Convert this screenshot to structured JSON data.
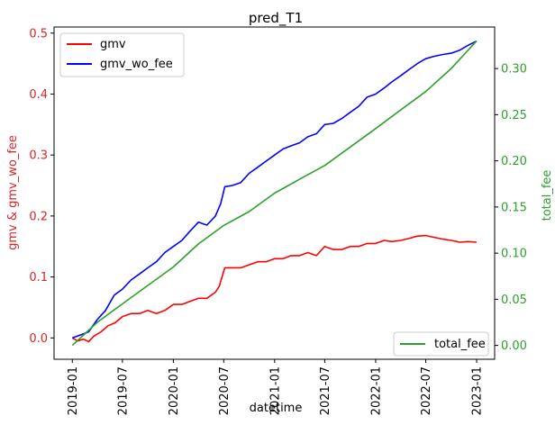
{
  "chart_data": {
    "type": "line",
    "title": "pred_T1",
    "xlabel": "datetime",
    "ylabel_left": "gmv & gmv_wo_fee",
    "ylabel_right": "total_fee",
    "x_ticks": [
      "2019-01",
      "2019-07",
      "2020-01",
      "2020-07",
      "2021-01",
      "2021-07",
      "2022-01",
      "2022-07",
      "2023-01"
    ],
    "y_left_ticks": [
      "0.0",
      "0.1",
      "0.2",
      "0.3",
      "0.4",
      "0.5"
    ],
    "y_right_ticks": [
      "0.00",
      "0.05",
      "0.10",
      "0.15",
      "0.20",
      "0.25",
      "0.30"
    ],
    "y_left_lim": [
      -0.035,
      0.51
    ],
    "y_right_lim": [
      -0.015,
      0.345
    ],
    "x_range": [
      "2018-10-27",
      "2023-03-07"
    ],
    "grid": false,
    "legend_left_position": "top-left",
    "legend_right_position": "bottom-right",
    "left_axis_color": "#d62728",
    "right_axis_color": "#2ca02c",
    "series": [
      {
        "name": "gmv",
        "axis": "left",
        "color": "#ff0000",
        "points": [
          [
            "2019-01-01",
            0.0
          ],
          [
            "2019-01-20",
            -0.005
          ],
          [
            "2019-02-10",
            -0.002
          ],
          [
            "2019-03-01",
            -0.006
          ],
          [
            "2019-03-20",
            0.003
          ],
          [
            "2019-04-15",
            0.01
          ],
          [
            "2019-05-10",
            0.02
          ],
          [
            "2019-06-05",
            0.025
          ],
          [
            "2019-07-01",
            0.035
          ],
          [
            "2019-08-01",
            0.04
          ],
          [
            "2019-09-01",
            0.04
          ],
          [
            "2019-10-01",
            0.045
          ],
          [
            "2019-11-01",
            0.04
          ],
          [
            "2019-12-01",
            0.045
          ],
          [
            "2020-01-01",
            0.055
          ],
          [
            "2020-02-01",
            0.055
          ],
          [
            "2020-03-01",
            0.06
          ],
          [
            "2020-04-01",
            0.065
          ],
          [
            "2020-05-01",
            0.065
          ],
          [
            "2020-06-01",
            0.075
          ],
          [
            "2020-06-15",
            0.085
          ],
          [
            "2020-06-25",
            0.1
          ],
          [
            "2020-07-05",
            0.115
          ],
          [
            "2020-08-01",
            0.115
          ],
          [
            "2020-09-01",
            0.115
          ],
          [
            "2020-10-01",
            0.12
          ],
          [
            "2020-11-01",
            0.125
          ],
          [
            "2020-12-01",
            0.125
          ],
          [
            "2021-01-01",
            0.13
          ],
          [
            "2021-02-01",
            0.13
          ],
          [
            "2021-03-01",
            0.135
          ],
          [
            "2021-04-01",
            0.135
          ],
          [
            "2021-05-01",
            0.14
          ],
          [
            "2021-06-01",
            0.135
          ],
          [
            "2021-07-01",
            0.15
          ],
          [
            "2021-08-01",
            0.145
          ],
          [
            "2021-09-01",
            0.145
          ],
          [
            "2021-10-01",
            0.15
          ],
          [
            "2021-11-01",
            0.15
          ],
          [
            "2021-12-01",
            0.155
          ],
          [
            "2022-01-01",
            0.155
          ],
          [
            "2022-02-01",
            0.16
          ],
          [
            "2022-03-01",
            0.158
          ],
          [
            "2022-04-01",
            0.16
          ],
          [
            "2022-05-01",
            0.163
          ],
          [
            "2022-06-01",
            0.167
          ],
          [
            "2022-07-01",
            0.168
          ],
          [
            "2022-08-01",
            0.165
          ],
          [
            "2022-09-01",
            0.162
          ],
          [
            "2022-10-01",
            0.16
          ],
          [
            "2022-11-01",
            0.157
          ],
          [
            "2022-12-01",
            0.158
          ],
          [
            "2023-01-01",
            0.157
          ]
        ]
      },
      {
        "name": "gmv_wo_fee",
        "axis": "left",
        "color": "#0000ff",
        "points": [
          [
            "2019-01-01",
            0.0
          ],
          [
            "2019-02-01",
            0.005
          ],
          [
            "2019-03-01",
            0.01
          ],
          [
            "2019-04-01",
            0.03
          ],
          [
            "2019-05-01",
            0.045
          ],
          [
            "2019-06-01",
            0.07
          ],
          [
            "2019-07-01",
            0.08
          ],
          [
            "2019-08-01",
            0.095
          ],
          [
            "2019-09-01",
            0.105
          ],
          [
            "2019-10-01",
            0.115
          ],
          [
            "2019-11-01",
            0.125
          ],
          [
            "2019-12-01",
            0.14
          ],
          [
            "2020-01-01",
            0.15
          ],
          [
            "2020-02-01",
            0.16
          ],
          [
            "2020-03-01",
            0.175
          ],
          [
            "2020-04-01",
            0.19
          ],
          [
            "2020-05-01",
            0.185
          ],
          [
            "2020-06-01",
            0.2
          ],
          [
            "2020-06-20",
            0.22
          ],
          [
            "2020-07-05",
            0.248
          ],
          [
            "2020-08-01",
            0.25
          ],
          [
            "2020-09-01",
            0.255
          ],
          [
            "2020-10-01",
            0.27
          ],
          [
            "2020-11-01",
            0.28
          ],
          [
            "2020-12-01",
            0.29
          ],
          [
            "2021-01-01",
            0.3
          ],
          [
            "2021-02-01",
            0.31
          ],
          [
            "2021-03-01",
            0.315
          ],
          [
            "2021-04-01",
            0.32
          ],
          [
            "2021-05-01",
            0.33
          ],
          [
            "2021-06-01",
            0.335
          ],
          [
            "2021-07-01",
            0.35
          ],
          [
            "2021-08-01",
            0.352
          ],
          [
            "2021-09-01",
            0.36
          ],
          [
            "2021-10-01",
            0.37
          ],
          [
            "2021-11-01",
            0.38
          ],
          [
            "2021-12-01",
            0.395
          ],
          [
            "2022-01-01",
            0.4
          ],
          [
            "2022-02-01",
            0.41
          ],
          [
            "2022-03-01",
            0.42
          ],
          [
            "2022-04-01",
            0.43
          ],
          [
            "2022-05-01",
            0.44
          ],
          [
            "2022-06-01",
            0.45
          ],
          [
            "2022-07-01",
            0.458
          ],
          [
            "2022-08-01",
            0.462
          ],
          [
            "2022-09-01",
            0.465
          ],
          [
            "2022-10-01",
            0.467
          ],
          [
            "2022-11-01",
            0.472
          ],
          [
            "2022-12-01",
            0.48
          ],
          [
            "2023-01-01",
            0.487
          ]
        ]
      },
      {
        "name": "total_fee",
        "axis": "right",
        "color": "#2ca02c",
        "points": [
          [
            "2019-01-01",
            0.0
          ],
          [
            "2019-04-01",
            0.025
          ],
          [
            "2019-07-01",
            0.045
          ],
          [
            "2019-10-01",
            0.065
          ],
          [
            "2020-01-01",
            0.085
          ],
          [
            "2020-04-01",
            0.11
          ],
          [
            "2020-07-01",
            0.13
          ],
          [
            "2020-10-01",
            0.145
          ],
          [
            "2021-01-01",
            0.165
          ],
          [
            "2021-04-01",
            0.18
          ],
          [
            "2021-07-01",
            0.195
          ],
          [
            "2021-10-01",
            0.215
          ],
          [
            "2022-01-01",
            0.235
          ],
          [
            "2022-04-01",
            0.255
          ],
          [
            "2022-07-01",
            0.275
          ],
          [
            "2022-10-01",
            0.3
          ],
          [
            "2023-01-01",
            0.33
          ]
        ]
      }
    ]
  }
}
